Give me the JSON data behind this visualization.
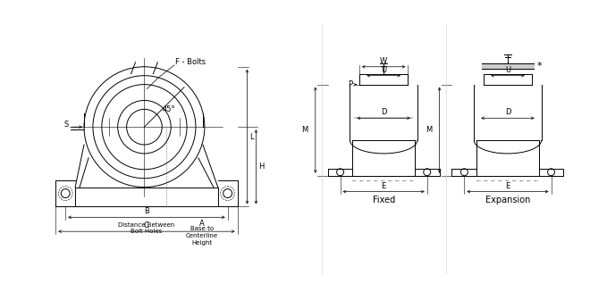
{
  "bg_color": "#ffffff",
  "line_color": "#000000",
  "fig_width": 6.6,
  "fig_height": 3.27,
  "dpi": 100,
  "labels": {
    "F_bolts": "F - Bolts",
    "angle": "45°",
    "S": "S",
    "B": "B",
    "dist_bolt": "Distance Between\nBolt Holes",
    "C": "C",
    "A": "A",
    "base_to_cl": "Base to\nCenterline\nHeight",
    "H": "H",
    "L": "L",
    "W": "W",
    "U": "U",
    "P": "P",
    "D": "D",
    "M": "M",
    "E": "E",
    "Fixed": "Fixed",
    "Expansion": "Expansion",
    "star": "*"
  }
}
